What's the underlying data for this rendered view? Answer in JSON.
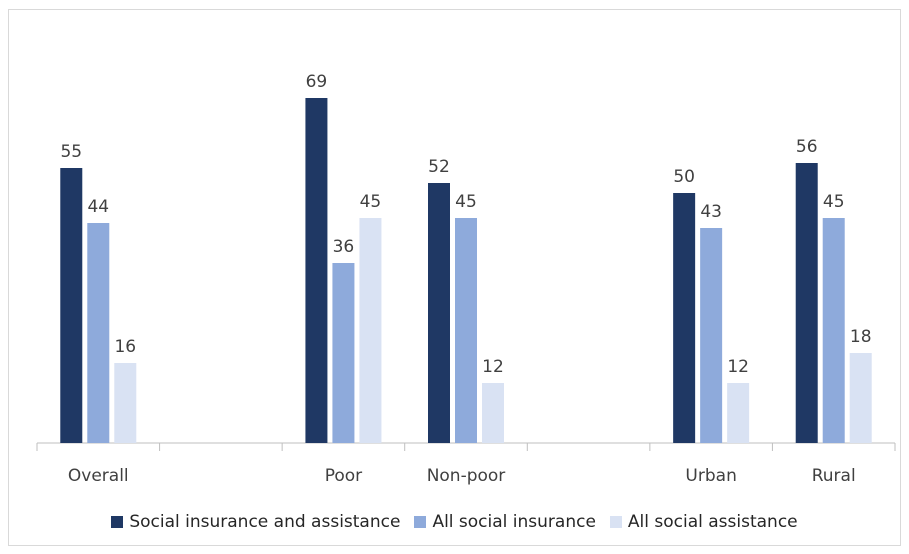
{
  "chart_data": {
    "type": "bar",
    "categories": [
      "Overall",
      "",
      "Poor",
      "Non-poor",
      "",
      "Urban",
      "Rural"
    ],
    "series": [
      {
        "name": "Social insurance and assistance",
        "color": "#1f3864",
        "values": [
          55,
          null,
          69,
          52,
          null,
          50,
          56
        ]
      },
      {
        "name": "All social insurance",
        "color": "#8eaadb",
        "values": [
          44,
          null,
          36,
          45,
          null,
          43,
          45
        ]
      },
      {
        "name": "All social assistance",
        "color": "#d9e2f3",
        "values": [
          16,
          null,
          45,
          12,
          null,
          12,
          18
        ]
      }
    ],
    "ylim": [
      0,
      75
    ],
    "grid": false,
    "legend_position": "bottom"
  }
}
